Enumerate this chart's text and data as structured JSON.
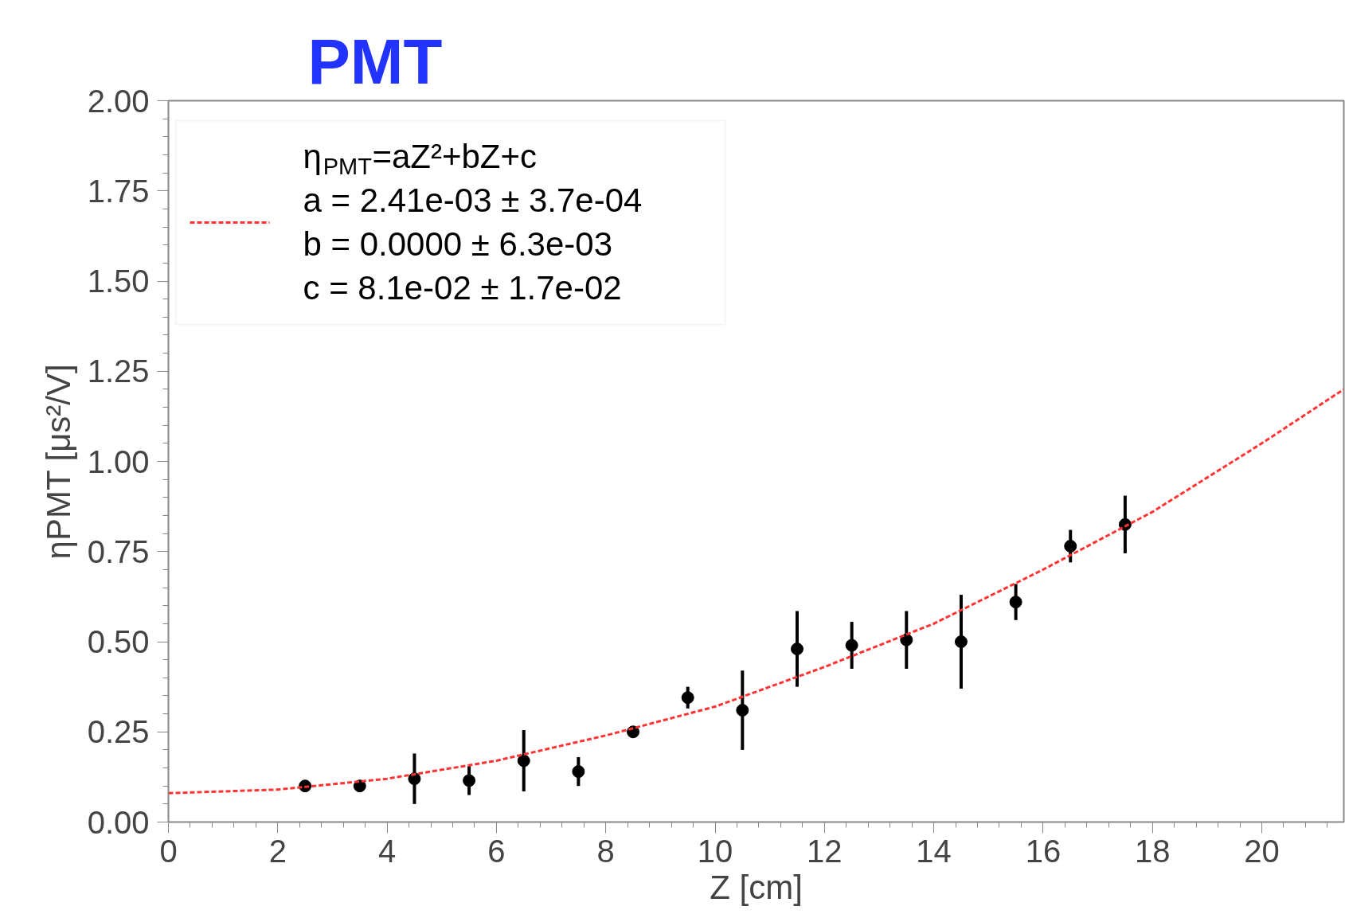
{
  "chart_data": {
    "type": "scatter",
    "title": "PMT",
    "xlabel": "Z [cm]",
    "ylabel": "ηPMT [μs²/V]",
    "xlim": [
      0,
      21.5
    ],
    "ylim": [
      0,
      2
    ],
    "xticks": [
      0,
      2,
      4,
      6,
      8,
      10,
      12,
      14,
      16,
      18,
      20
    ],
    "yticks": [
      {
        "value": 0,
        "label": "0.00"
      },
      {
        "value": 0.25,
        "label": "0.25"
      },
      {
        "value": 0.5,
        "label": "0.50"
      },
      {
        "value": 0.75,
        "label": "0.75"
      },
      {
        "value": 1,
        "label": "1.00"
      },
      {
        "value": 1.25,
        "label": "1.25"
      },
      {
        "value": 1.5,
        "label": "1.50"
      },
      {
        "value": 1.75,
        "label": "1.75"
      },
      {
        "value": 2,
        "label": "2.00"
      }
    ],
    "grid": false,
    "legend": "top left",
    "annotations": [
      "a = 2.41e-03 ± 3.7e-04",
      "b = 0.0000 ± 6.3e-03",
      "c = 8.1e-02 ± 1.7e-02"
    ],
    "series": [
      {
        "color": "#000000",
        "marker": "circle",
        "x": [
          2.5,
          3.5,
          4.5,
          5.5,
          6.5,
          7.5,
          8.5,
          9.5,
          10.5,
          11.5,
          12.5,
          13.5,
          14.5,
          15.5,
          16.5,
          17.5
        ],
        "values": [
          0.1,
          0.1,
          0.12,
          0.115,
          0.17,
          0.14,
          0.25,
          0.345,
          0.31,
          0.48,
          0.49,
          0.505,
          0.5,
          0.61,
          0.765,
          0.825
        ],
        "errors": [
          0.01,
          0.01,
          0.07,
          0.04,
          0.085,
          0.04,
          0.015,
          0.03,
          0.11,
          0.105,
          0.065,
          0.08,
          0.13,
          0.05,
          0.045,
          0.08
        ]
      },
      {
        "type": "line",
        "name": "η$_{PMT}$=aZ²+bZ+c",
        "color": "#ff3333",
        "line_style": "dashed",
        "x": [
          0,
          2,
          4,
          6,
          8,
          10,
          12,
          14,
          16,
          18,
          20,
          21.5
        ],
        "values": [
          0.08,
          0.09,
          0.12,
          0.17,
          0.24,
          0.32,
          0.43,
          0.55,
          0.7,
          0.86,
          1.05,
          1.2
        ]
      }
    ]
  }
}
